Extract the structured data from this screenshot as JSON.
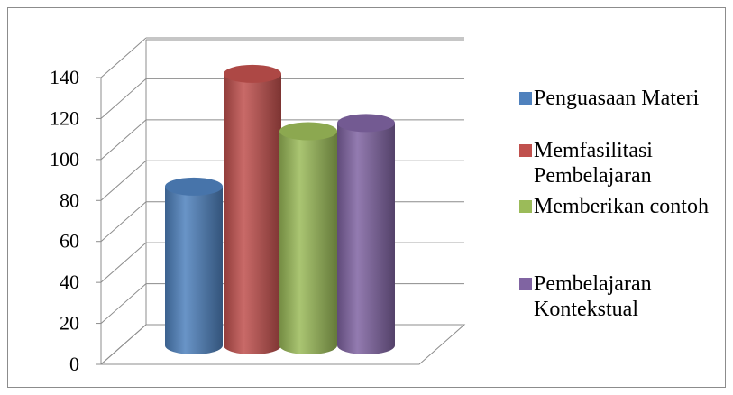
{
  "chart_data": {
    "type": "bar",
    "style": "3d-cylinder",
    "categories": [
      "Penguasaan Materi",
      "Memfasilitasi Pembelajaran",
      "Memberikan contoh",
      "Pembelajaran Kontekstual"
    ],
    "values": [
      78,
      133,
      105,
      109
    ],
    "ylim": [
      0,
      140
    ],
    "yticks": [
      "0",
      "20",
      "40",
      "60",
      "80",
      "100",
      "120",
      "140"
    ],
    "grid": true,
    "legend_position": "right",
    "legend": [
      {
        "lines": [
          "Penguasaan Materi"
        ],
        "color": "#4f81bd"
      },
      {
        "lines": [
          "Memfasilitasi",
          "Pembelajaran"
        ],
        "color": "#c0504d"
      },
      {
        "lines": [
          "Memberikan contoh"
        ],
        "color": "#9bbb59"
      },
      {
        "lines": [
          "Pembelajaran",
          "Kontekstual"
        ],
        "color": "#8064a2"
      }
    ],
    "colors": [
      "#4f81bd",
      "#c0504d",
      "#9bbb59",
      "#8064a2"
    ]
  }
}
